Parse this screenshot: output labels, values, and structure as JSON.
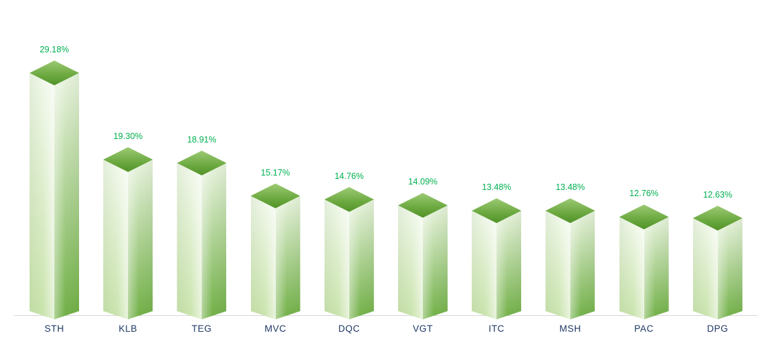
{
  "chart_data": {
    "type": "bar",
    "variant": "3d-column",
    "categories": [
      "STH",
      "KLB",
      "TEG",
      "MVC",
      "DQC",
      "VGT",
      "ITC",
      "MSH",
      "PAC",
      "DPG"
    ],
    "values": [
      29.18,
      19.3,
      18.91,
      15.17,
      14.76,
      14.09,
      13.48,
      13.48,
      12.76,
      12.63
    ],
    "value_labels": [
      "29.18%",
      "19.30%",
      "18.91%",
      "15.17%",
      "14.76%",
      "14.09%",
      "13.48%",
      "13.48%",
      "12.76%",
      "12.63%"
    ],
    "ylim": [
      0,
      30
    ],
    "grid": false,
    "legend": "none",
    "value_label_position": "above-bar",
    "colors": {
      "background": "#FFFFFF",
      "value_label": "#00B050",
      "category_label": "#1F3864",
      "axis_line": "#D6D6D6",
      "bar_top_gradient": [
        "#9CCA74",
        "#6FAB43",
        "#519328"
      ],
      "bar_left_face_gradient": [
        "#F1F8EB",
        "#C9E3AC"
      ],
      "bar_right_face_gradient": [
        "#EAF4E0",
        "#70AF45"
      ]
    }
  }
}
